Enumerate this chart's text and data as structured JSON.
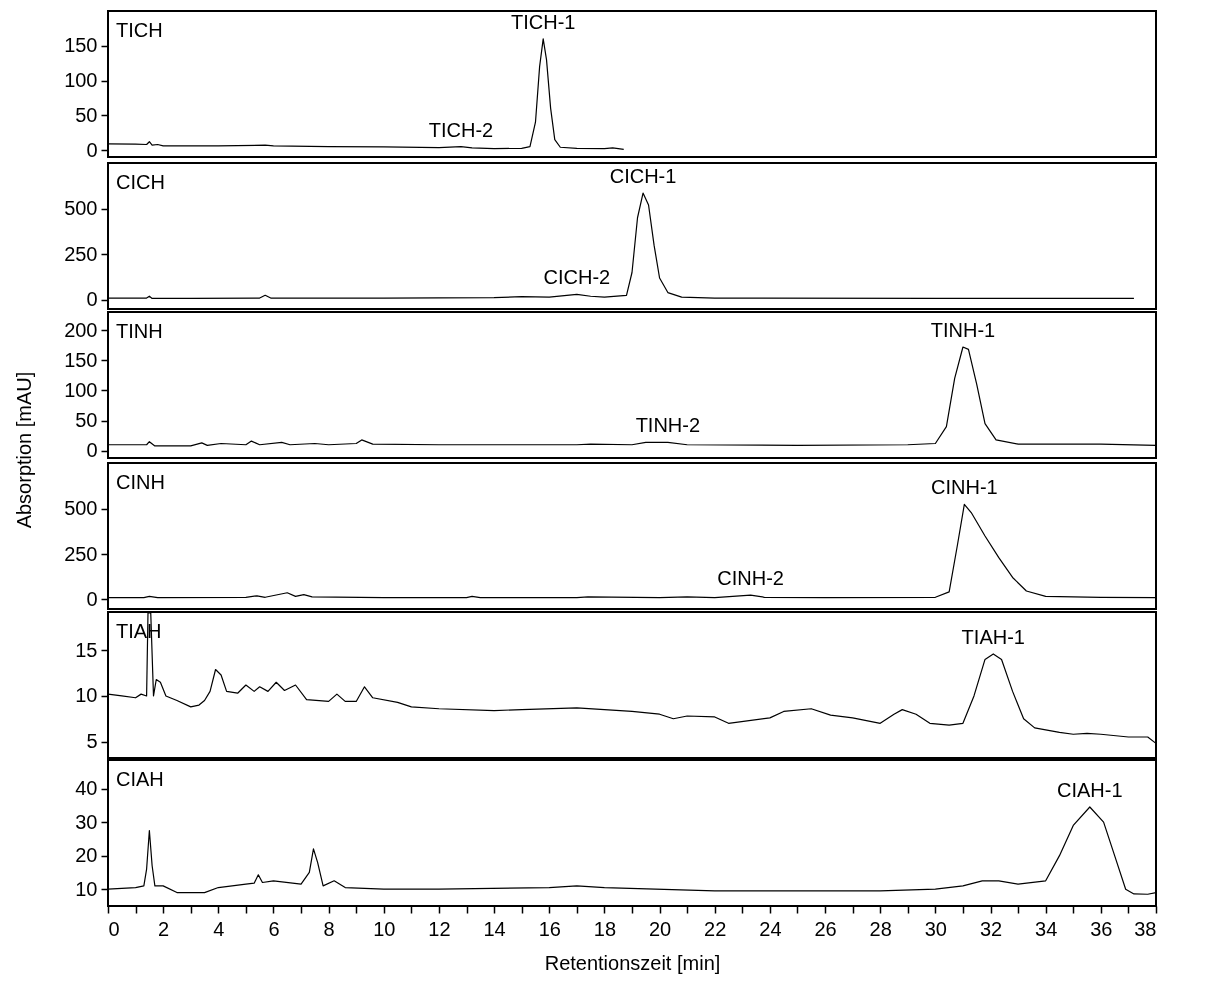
{
  "chart_data": [
    {
      "type": "line",
      "title": "TICH",
      "xlim": [
        0,
        38
      ],
      "ylim": [
        -10,
        200
      ],
      "yticks": [
        0,
        50,
        100,
        150
      ],
      "tick_labels": "y",
      "marker": "none",
      "line_style": "solid",
      "series": [
        {
          "color": "#000000",
          "x": [
            0,
            1,
            1.4,
            1.5,
            1.6,
            1.8,
            2,
            4,
            5.7,
            6,
            8,
            10,
            12,
            12.8,
            13.2,
            14,
            15,
            15.3,
            15.5,
            15.65,
            15.78,
            15.9,
            16.05,
            16.2,
            16.4,
            17,
            18,
            18.3,
            18.7
          ],
          "values": [
            9,
            8.5,
            8,
            12,
            7,
            8,
            6,
            6,
            7,
            6,
            5,
            4.5,
            3.5,
            5,
            3,
            2,
            2.5,
            5,
            40,
            120,
            160,
            130,
            60,
            15,
            4,
            2.5,
            2,
            3,
            1
          ]
        }
      ],
      "annotations": [
        {
          "text": "TICH-1",
          "x": 15.78,
          "y": 160
        },
        {
          "text": "TICH-2",
          "x": 12.8,
          "y": 5
        }
      ]
    },
    {
      "type": "line",
      "title": "CICH",
      "xlim": [
        0,
        38
      ],
      "ylim": [
        -50,
        750
      ],
      "yticks": [
        0,
        250,
        500
      ],
      "tick_labels": "y",
      "marker": "none",
      "line_style": "solid",
      "series": [
        {
          "color": "#000000",
          "x": [
            0,
            1.4,
            1.5,
            1.6,
            3,
            5.5,
            5.7,
            5.9,
            10,
            14,
            15,
            16,
            17,
            17.5,
            18,
            18.8,
            19,
            19.2,
            19.4,
            19.6,
            19.8,
            20,
            20.3,
            20.8,
            22,
            30,
            37.2
          ],
          "values": [
            10,
            10,
            20,
            8,
            8,
            10,
            25,
            10,
            10,
            12,
            18,
            15,
            30,
            20,
            15,
            25,
            150,
            450,
            585,
            520,
            300,
            120,
            40,
            15,
            10,
            8,
            8
          ]
        }
      ],
      "annotations": [
        {
          "text": "CICH-1",
          "x": 19.4,
          "y": 585
        },
        {
          "text": "CICH-2",
          "x": 17,
          "y": 30
        }
      ]
    },
    {
      "type": "line",
      "title": "TINH",
      "xlim": [
        0,
        38
      ],
      "ylim": [
        -12,
        230
      ],
      "yticks": [
        0,
        50,
        100,
        150,
        200
      ],
      "tick_labels": "y",
      "marker": "none",
      "line_style": "solid",
      "series": [
        {
          "color": "#000000",
          "x": [
            0,
            1.4,
            1.5,
            1.7,
            3,
            3.4,
            3.6,
            4.1,
            5,
            5.2,
            5.5,
            6.3,
            6.6,
            7.5,
            8,
            9,
            9.2,
            9.6,
            12,
            17,
            17.5,
            19,
            19.5,
            20.3,
            21,
            25,
            29,
            30,
            30.4,
            30.7,
            31,
            31.2,
            31.5,
            31.8,
            32.2,
            33,
            36,
            38
          ],
          "values": [
            10,
            10,
            15,
            8,
            8,
            13,
            9,
            12,
            10,
            16,
            10,
            14,
            10,
            12,
            10,
            12,
            18,
            11,
            10,
            10,
            11,
            10,
            14,
            14,
            10,
            9,
            10,
            12,
            40,
            120,
            172,
            168,
            110,
            45,
            18,
            11,
            11,
            9
          ]
        }
      ],
      "annotations": [
        {
          "text": "TINH-1",
          "x": 31,
          "y": 172
        },
        {
          "text": "TINH-2",
          "x": 20.3,
          "y": 14
        }
      ]
    },
    {
      "type": "line",
      "title": "CINH",
      "ylabel": "Absorption [mAU]",
      "xlim": [
        0,
        38
      ],
      "ylim": [
        -55,
        755
      ],
      "yticks": [
        0,
        250,
        500
      ],
      "tick_labels": "y",
      "marker": "none",
      "line_style": "solid",
      "series": [
        {
          "color": "#000000",
          "x": [
            0,
            1.3,
            1.5,
            1.8,
            5,
            5.4,
            5.7,
            6.5,
            6.8,
            7.1,
            7.4,
            10,
            13,
            13.2,
            13.5,
            17,
            17.4,
            20,
            21,
            22,
            23.3,
            23.8,
            26,
            30,
            30.5,
            30.8,
            31.05,
            31.3,
            31.8,
            32.3,
            32.8,
            33.3,
            34,
            36,
            38
          ],
          "values": [
            8,
            8,
            15,
            8,
            10,
            18,
            10,
            35,
            15,
            25,
            12,
            8,
            8,
            15,
            8,
            8,
            12,
            8,
            12,
            8,
            22,
            10,
            8,
            10,
            40,
            300,
            525,
            480,
            350,
            230,
            120,
            45,
            15,
            10,
            8
          ]
        }
      ],
      "annotations": [
        {
          "text": "CINH-1",
          "x": 31.05,
          "y": 525
        },
        {
          "text": "CINH-2",
          "x": 23.3,
          "y": 22
        }
      ]
    },
    {
      "type": "line",
      "title": "TIAH",
      "xlim": [
        0,
        38
      ],
      "ylim": [
        3.2,
        19.2
      ],
      "yticks": [
        5,
        10,
        15
      ],
      "tick_labels": "y",
      "marker": "none",
      "line_style": "solid",
      "series": [
        {
          "color": "#000000",
          "x": [
            0,
            0.5,
            1,
            1.2,
            1.4,
            1.45,
            1.55,
            1.65,
            1.75,
            1.9,
            2.1,
            2.5,
            3,
            3.3,
            3.5,
            3.7,
            3.9,
            4.1,
            4.3,
            4.7,
            5,
            5.3,
            5.5,
            5.8,
            6.1,
            6.4,
            6.8,
            7.2,
            8,
            8.3,
            8.6,
            9,
            9.3,
            9.6,
            10.5,
            11,
            12,
            14,
            15,
            17,
            18,
            19,
            20,
            20.5,
            21,
            22,
            22.5,
            24,
            24.5,
            25.5,
            26.2,
            27,
            28,
            28.5,
            28.8,
            29.3,
            29.8,
            30.5,
            31,
            31.4,
            31.8,
            32.1,
            32.4,
            32.8,
            33.2,
            33.6,
            34.5,
            35,
            35.5,
            36,
            37,
            37.7,
            38
          ],
          "values": [
            10.2,
            10,
            9.8,
            10.2,
            10,
            19.1,
            19.1,
            10,
            11.8,
            11.5,
            10,
            9.5,
            8.8,
            9,
            9.5,
            10.5,
            12.9,
            12.3,
            10.5,
            10.3,
            11.2,
            10.5,
            11,
            10.5,
            11.5,
            10.6,
            11.2,
            9.6,
            9.4,
            10.2,
            9.4,
            9.4,
            11,
            9.8,
            9.3,
            8.8,
            8.6,
            8.4,
            8.5,
            8.7,
            8.5,
            8.3,
            8,
            7.5,
            7.8,
            7.7,
            7,
            7.6,
            8.3,
            8.6,
            7.9,
            7.6,
            7,
            8,
            8.5,
            8,
            7,
            6.8,
            7,
            10,
            14,
            14.6,
            14,
            10.5,
            7.5,
            6.5,
            6,
            5.8,
            5.9,
            5.8,
            5.5,
            5.5,
            4.8
          ]
        }
      ],
      "annotations": [
        {
          "text": "TIAH-1",
          "x": 32.1,
          "y": 14.6
        }
      ]
    },
    {
      "type": "line",
      "title": "CIAH",
      "xlabel": "Retentionszeit [min]",
      "xlim": [
        0,
        38
      ],
      "ylim": [
        5,
        48.5
      ],
      "yticks": [
        10,
        20,
        30,
        40
      ],
      "marker": "none",
      "line_style": "solid",
      "xticks": [
        0,
        {
          "value": 1,
          "label": null
        },
        2,
        {
          "value": 3,
          "label": null
        },
        4,
        {
          "value": 5,
          "label": null
        },
        6,
        {
          "value": 7,
          "label": null
        },
        8,
        {
          "value": 9,
          "label": null
        },
        10,
        {
          "value": 11,
          "label": null
        },
        12,
        {
          "value": 13,
          "label": null
        },
        14,
        {
          "value": 15,
          "label": null
        },
        16,
        {
          "value": 17,
          "label": null
        },
        18,
        {
          "value": 19,
          "label": null
        },
        20,
        {
          "value": 21,
          "label": null
        },
        22,
        {
          "value": 23,
          "label": null
        },
        24,
        {
          "value": 25,
          "label": null
        },
        26,
        {
          "value": 27,
          "label": null
        },
        28,
        {
          "value": 29,
          "label": null
        },
        30,
        {
          "value": 31,
          "label": null
        },
        32,
        {
          "value": 33,
          "label": null
        },
        34,
        {
          "value": 35,
          "label": null
        },
        36,
        {
          "value": 37,
          "label": null
        },
        38
      ],
      "series": [
        {
          "color": "#000000",
          "x": [
            0,
            1,
            1.3,
            1.4,
            1.5,
            1.6,
            1.7,
            2,
            2.5,
            3.5,
            4,
            5,
            5.3,
            5.45,
            5.6,
            6,
            7,
            7.3,
            7.45,
            7.6,
            7.8,
            8.2,
            8.6,
            10,
            12,
            16,
            17,
            18,
            22,
            26,
            28,
            30,
            31,
            31.7,
            32.3,
            33,
            34,
            34.5,
            35,
            35.6,
            36.1,
            36.5,
            36.9,
            37.2,
            37.7,
            38
          ],
          "values": [
            10,
            10.5,
            11,
            16,
            27.5,
            17,
            11,
            11,
            9,
            9,
            10.5,
            11.5,
            11.8,
            14.3,
            12,
            12.5,
            11.5,
            15,
            22,
            18,
            11,
            12.5,
            10.5,
            10,
            10,
            10.5,
            11,
            10.5,
            9.5,
            9.5,
            9.5,
            10,
            11,
            12.5,
            12.5,
            11.5,
            12.5,
            20,
            29,
            34.5,
            30,
            20,
            10,
            8.6,
            8.5,
            9
          ]
        }
      ],
      "annotations": [
        {
          "text": "CIAH-1",
          "x": 35.6,
          "y": 34.5
        }
      ]
    }
  ]
}
